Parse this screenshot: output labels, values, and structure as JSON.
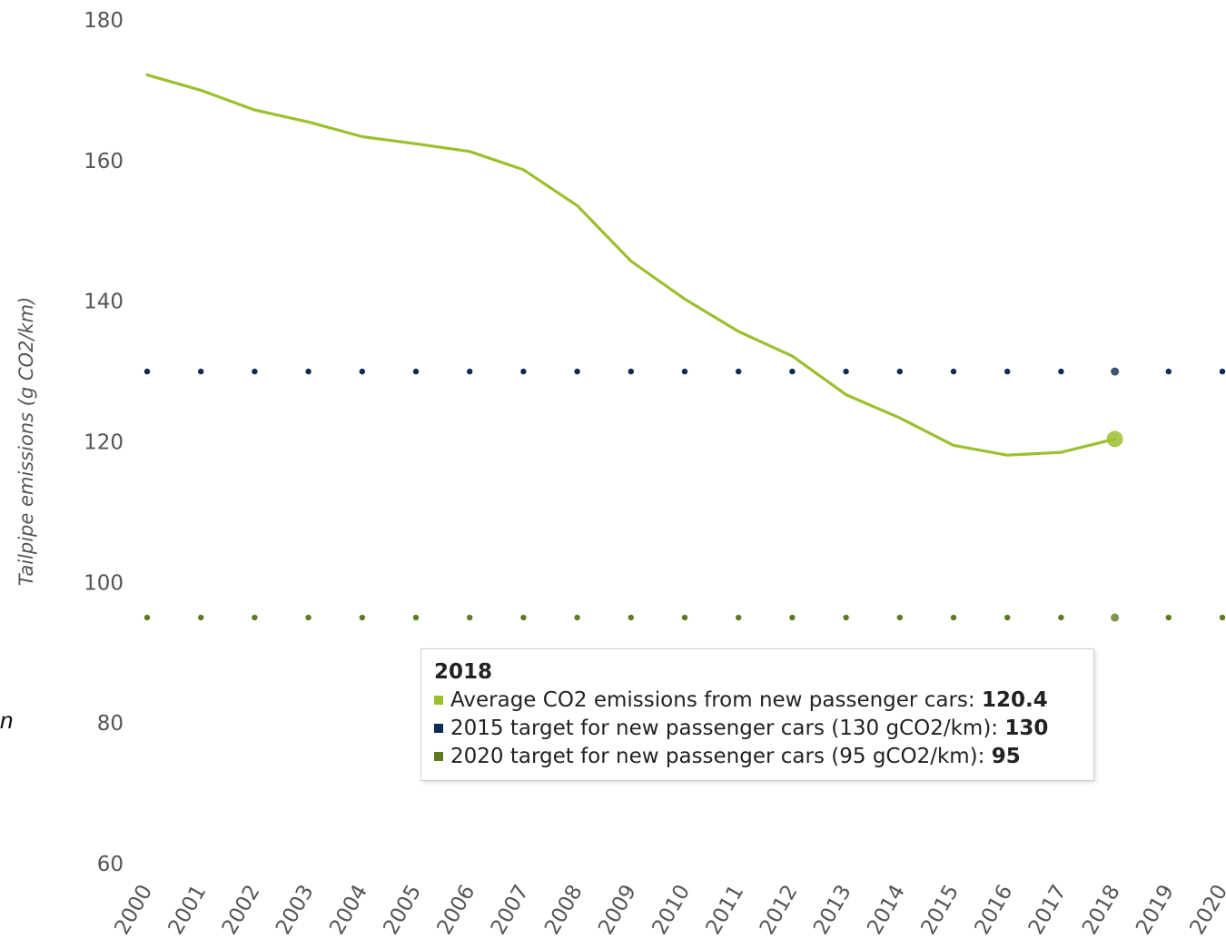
{
  "chart_data": {
    "type": "line",
    "ylabel": "Tailpipe emissions (g CO2/km)",
    "xlabel": "",
    "title": "",
    "ylim": [
      60,
      180
    ],
    "yticks": [
      60,
      80,
      100,
      120,
      140,
      160,
      180
    ],
    "x": [
      "2000",
      "2001",
      "2002",
      "2003",
      "2004",
      "2005",
      "2006",
      "2007",
      "2008",
      "2009",
      "2010",
      "2011",
      "2012",
      "2013",
      "2014",
      "2015",
      "2016",
      "2017",
      "2018",
      "2019",
      "2020"
    ],
    "series": [
      {
        "name": "Average CO2 emissions from new passenger cars",
        "color": "#9dbf2e",
        "style": "line",
        "values": [
          172.2,
          170.0,
          167.2,
          165.5,
          163.4,
          162.4,
          161.3,
          158.7,
          153.6,
          145.7,
          140.3,
          135.7,
          132.2,
          126.7,
          123.4,
          119.5,
          118.1,
          118.5,
          120.4,
          null,
          null
        ]
      },
      {
        "name": "2015 target for new passenger cars (130 gCO2/km)",
        "color": "#0d2b52",
        "style": "dotted",
        "values": [
          130,
          130,
          130,
          130,
          130,
          130,
          130,
          130,
          130,
          130,
          130,
          130,
          130,
          130,
          130,
          130,
          130,
          130,
          130,
          130,
          130
        ]
      },
      {
        "name": "2020 target for new passenger cars (95 gCO2/km)",
        "color": "#5c7a1f",
        "style": "dotted",
        "values": [
          95,
          95,
          95,
          95,
          95,
          95,
          95,
          95,
          95,
          95,
          95,
          95,
          95,
          95,
          95,
          95,
          95,
          95,
          95,
          95,
          95
        ]
      }
    ],
    "tooltip": {
      "title": "2018",
      "rows": [
        {
          "label": "Average CO2 emissions from new passenger cars: ",
          "value": "120.4",
          "color": "#9dbf2e"
        },
        {
          "label": "2015 target for new passenger cars (130 gCO2/km): ",
          "value": "130",
          "color": "#0d2b52"
        },
        {
          "label": "2020 target for new passenger cars (95 gCO2/km): ",
          "value": "95",
          "color": "#5c7a1f"
        }
      ]
    },
    "highlight_index": 18,
    "grid": false
  },
  "stray_text": "n"
}
